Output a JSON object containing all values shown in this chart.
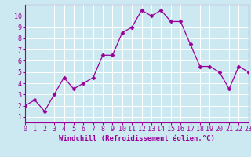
{
  "x": [
    0,
    1,
    2,
    3,
    4,
    5,
    6,
    7,
    8,
    9,
    10,
    11,
    12,
    13,
    14,
    15,
    16,
    17,
    18,
    19,
    20,
    21,
    22,
    23
  ],
  "y": [
    2,
    2.5,
    1.5,
    3,
    4.5,
    3.5,
    4,
    4.5,
    6.5,
    6.5,
    8.5,
    9,
    10.5,
    10,
    10.5,
    9.5,
    9.5,
    7.5,
    5.5,
    5.5,
    5,
    3.5,
    5.5,
    5
  ],
  "line_color": "#990099",
  "marker": "D",
  "marker_size": 2.5,
  "background_color": "#cce8f0",
  "grid_color": "#ffffff",
  "xlabel": "Windchill (Refroidissement éolien,°C)",
  "ylabel": "",
  "title": "",
  "xlim": [
    0,
    23
  ],
  "ylim": [
    0.5,
    11
  ],
  "xticks": [
    0,
    1,
    2,
    3,
    4,
    5,
    6,
    7,
    8,
    9,
    10,
    11,
    12,
    13,
    14,
    15,
    16,
    17,
    18,
    19,
    20,
    21,
    22,
    23
  ],
  "yticks": [
    1,
    2,
    3,
    4,
    5,
    6,
    7,
    8,
    9,
    10
  ],
  "font_color": "#990099",
  "tick_fontsize": 6,
  "xlabel_fontsize": 6.5
}
